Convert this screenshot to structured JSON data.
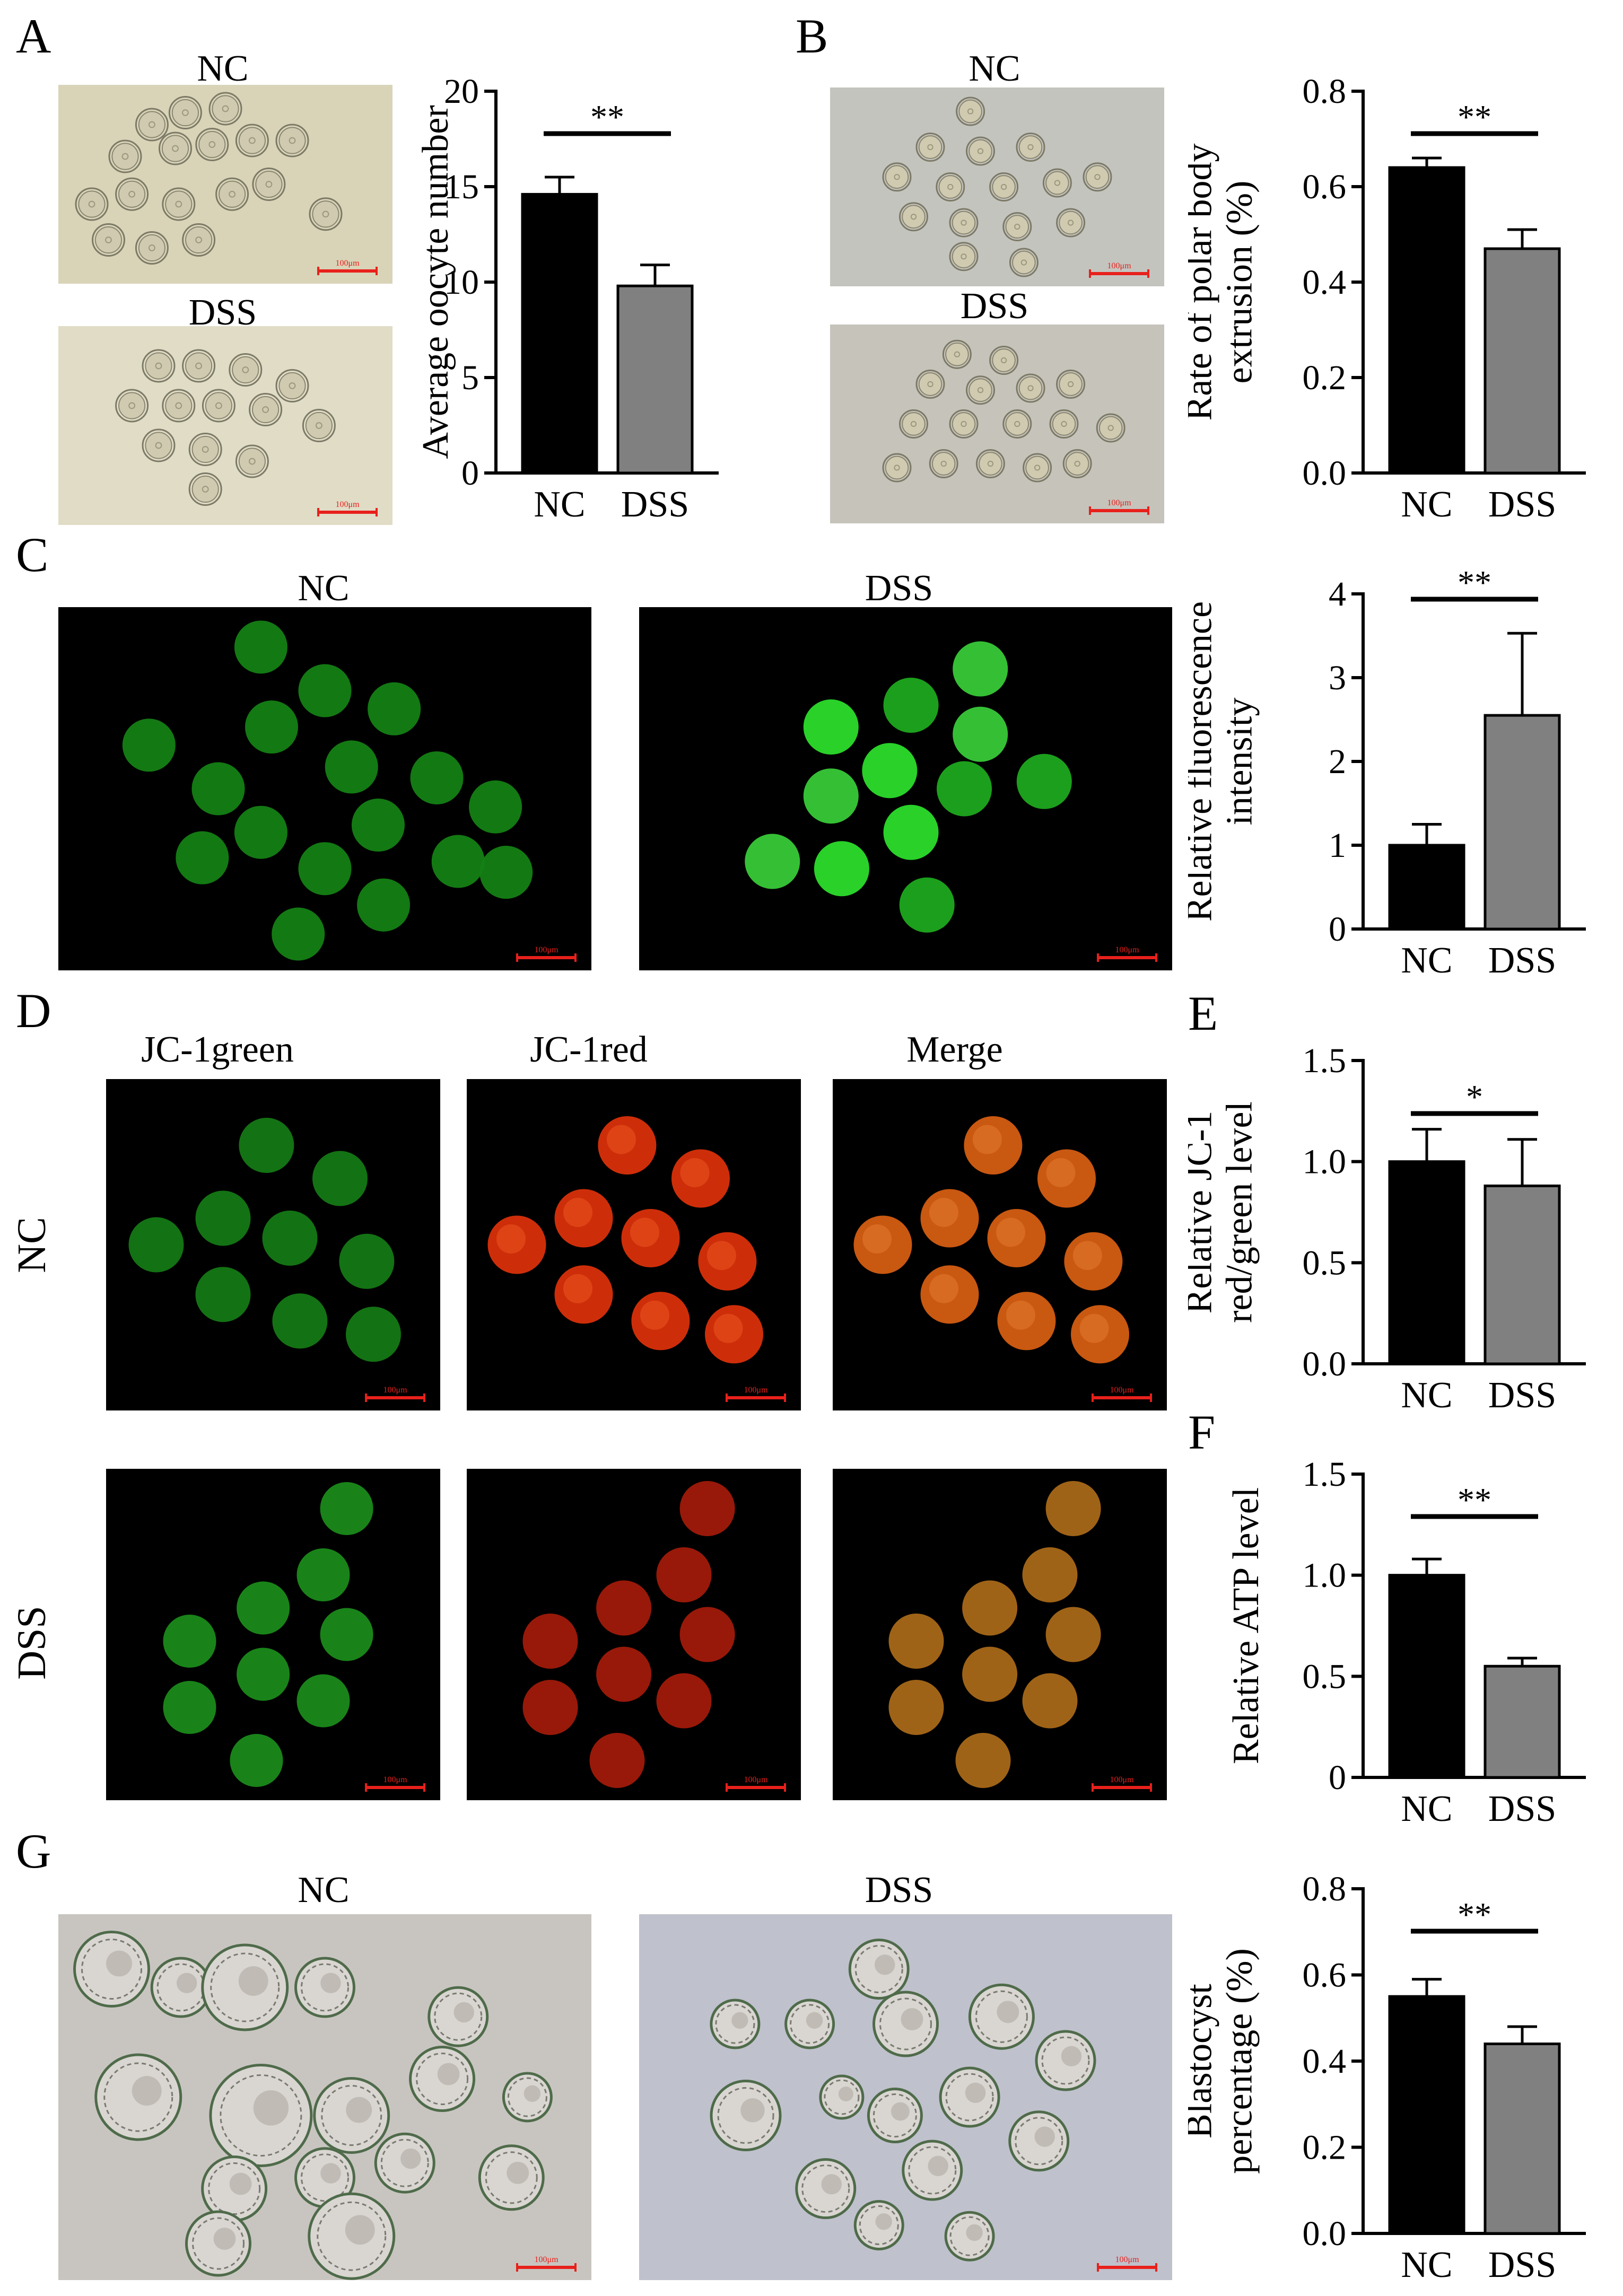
{
  "panels": {
    "A": {
      "letter": "A",
      "label_top": "NC",
      "label_bottom": "DSS",
      "scale": "100μm"
    },
    "B": {
      "letter": "B",
      "label_top": "NC",
      "label_bottom": "DSS",
      "scale": "100μm"
    },
    "C": {
      "letter": "C",
      "label_left": "NC",
      "label_right": "DSS",
      "scale": "100μm"
    },
    "D": {
      "letter": "D",
      "col1": "JC-1green",
      "col2": "JC-1red",
      "col3": "Merge",
      "row1": "NC",
      "row2": "DSS",
      "scale": "100μm"
    },
    "E": {
      "letter": "E"
    },
    "F": {
      "letter": "F"
    },
    "G": {
      "letter": "G",
      "label_left": "NC",
      "label_right": "DSS",
      "scale": "100μm"
    }
  },
  "colors": {
    "nc_bar": "#000000",
    "dss_bar": "#808080",
    "significance": "#000000",
    "scale_bar": "#e8201b"
  },
  "chart_data": [
    {
      "id": "A",
      "type": "bar",
      "categories": [
        "NC",
        "DSS"
      ],
      "values": [
        14.6,
        9.8
      ],
      "errors": [
        0.9,
        1.1
      ],
      "ylabel": "Average oocyte number",
      "ylim": [
        0,
        20
      ],
      "yticks": [
        "0",
        "5",
        "10",
        "15",
        "20"
      ],
      "significance": "**"
    },
    {
      "id": "B",
      "type": "bar",
      "categories": [
        "NC",
        "DSS"
      ],
      "values": [
        0.64,
        0.47
      ],
      "errors": [
        0.02,
        0.04
      ],
      "ylabel": "Rate of polar body extrusion (%)",
      "ylabel_lines": [
        "Rate of polar body",
        "extrusion (%)"
      ],
      "ylim": [
        0,
        0.8
      ],
      "yticks": [
        "0.0",
        "0.2",
        "0.4",
        "0.6",
        "0.8"
      ],
      "significance": "**"
    },
    {
      "id": "C",
      "type": "bar",
      "categories": [
        "NC",
        "DSS"
      ],
      "values": [
        1.0,
        2.55
      ],
      "errors": [
        0.25,
        0.98
      ],
      "ylabel": "Relative fluorescence intensity",
      "ylabel_lines": [
        "Relative fluorescence",
        "intensity"
      ],
      "ylim": [
        0,
        4
      ],
      "yticks": [
        "0",
        "1",
        "2",
        "3",
        "4"
      ],
      "significance": "**"
    },
    {
      "id": "E",
      "type": "bar",
      "categories": [
        "NC",
        "DSS"
      ],
      "values": [
        1.0,
        0.88
      ],
      "errors": [
        0.16,
        0.23
      ],
      "ylabel": "Relative JC-1 red/green level",
      "ylabel_lines": [
        "Relative JC-1",
        "red/green level"
      ],
      "ylim": [
        0,
        1.5
      ],
      "yticks": [
        "0.0",
        "0.5",
        "1.0",
        "1.5"
      ],
      "significance": "*"
    },
    {
      "id": "F",
      "type": "bar",
      "categories": [
        "NC",
        "DSS"
      ],
      "values": [
        1.0,
        0.55
      ],
      "errors": [
        0.08,
        0.04
      ],
      "ylabel": "Relative ATP level",
      "ylim": [
        0,
        1.5
      ],
      "yticks": [
        "0",
        "0.5",
        "1.0",
        "1.5"
      ],
      "significance": "**"
    },
    {
      "id": "G",
      "type": "bar",
      "categories": [
        "NC",
        "DSS"
      ],
      "values": [
        0.55,
        0.44
      ],
      "errors": [
        0.04,
        0.04
      ],
      "ylabel": "Blastocyst percentage (%)",
      "ylabel_lines": [
        "Blastocyst",
        "percentage (%)"
      ],
      "ylim": [
        0,
        0.8
      ],
      "yticks": [
        "0.0",
        "0.2",
        "0.4",
        "0.6",
        "0.8"
      ],
      "significance": "**"
    }
  ]
}
